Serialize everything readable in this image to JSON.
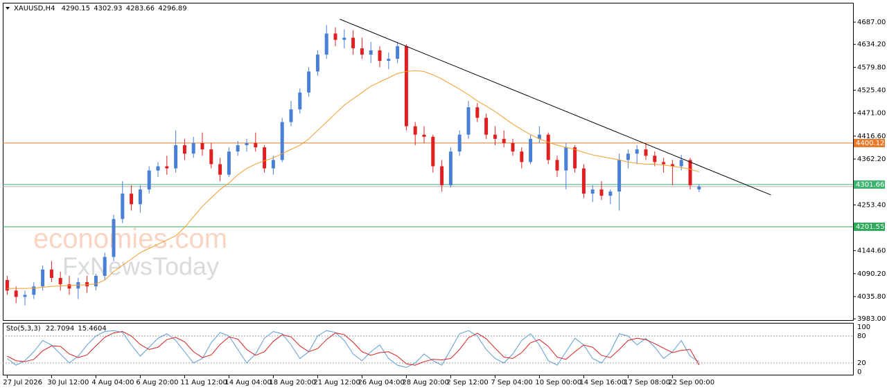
{
  "chart_data": [
    {
      "type": "candlestick",
      "symbol": "XAUUSD,H4",
      "watermark": [
        "economies.com",
        "FxNewsToday"
      ],
      "bull_color": "#4a7fd4",
      "bear_color": "#e02020",
      "categories": [
        "27 Jul 2026",
        null,
        null,
        null,
        null,
        "30 Jul 12:00",
        null,
        null,
        null,
        null,
        "4 Aug 04:00",
        null,
        null,
        null,
        null,
        "6 Aug 20:00",
        null,
        null,
        null,
        null,
        "11 Aug 12:00",
        null,
        null,
        null,
        null,
        "14 Aug 04:00",
        null,
        null,
        null,
        null,
        "18 Aug 20:00",
        null,
        null,
        null,
        null,
        "21 Aug 12:00",
        null,
        null,
        null,
        null,
        "26 Aug 04:00",
        null,
        null,
        null,
        null,
        "28 Aug 20:00",
        null,
        null,
        null,
        null,
        "2 Sep 12:00",
        null,
        null,
        null,
        null,
        "7 Sep 04:00",
        null,
        null,
        null,
        null,
        "10 Sep 00:00",
        null,
        null,
        null,
        null,
        "14 Sep 16:00",
        null,
        null,
        null,
        null,
        "17 Sep 08:00",
        null,
        null,
        null,
        null,
        "22 Sep 00:00",
        null,
        null,
        null
      ],
      "ohlc": [
        [
          4075,
          4085,
          4040,
          4050
        ],
        [
          4050,
          4060,
          4020,
          4035
        ],
        [
          4035,
          4050,
          4015,
          4040
        ],
        [
          4040,
          4070,
          4030,
          4060
        ],
        [
          4060,
          4110,
          4050,
          4100
        ],
        [
          4100,
          4120,
          4070,
          4080
        ],
        [
          4080,
          4095,
          4050,
          4065
        ],
        [
          4065,
          4085,
          4040,
          4055
        ],
        [
          4055,
          4080,
          4030,
          4070
        ],
        [
          4070,
          4085,
          4045,
          4060
        ],
        [
          4060,
          4090,
          4050,
          4085
        ],
        [
          4085,
          4140,
          4075,
          4130
        ],
        [
          4130,
          4230,
          4120,
          4220
        ],
        [
          4220,
          4310,
          4210,
          4280
        ],
        [
          4280,
          4300,
          4240,
          4255
        ],
        [
          4255,
          4300,
          4235,
          4290
        ],
        [
          4290,
          4345,
          4280,
          4335
        ],
        [
          4335,
          4355,
          4320,
          4345
        ],
        [
          4345,
          4370,
          4325,
          4340
        ],
        [
          4340,
          4430,
          4330,
          4395
        ],
        [
          4395,
          4410,
          4360,
          4375
        ],
        [
          4375,
          4415,
          4365,
          4400
        ],
        [
          4400,
          4425,
          4370,
          4385
        ],
        [
          4385,
          4400,
          4340,
          4350
        ],
        [
          4350,
          4365,
          4310,
          4325
        ],
        [
          4325,
          4390,
          4320,
          4380
        ],
        [
          4380,
          4405,
          4370,
          4395
        ],
        [
          4395,
          4410,
          4380,
          4400
        ],
        [
          4400,
          4425,
          4380,
          4390
        ],
        [
          4390,
          4395,
          4330,
          4340
        ],
        [
          4340,
          4370,
          4325,
          4360
        ],
        [
          4360,
          4460,
          4355,
          4450
        ],
        [
          4450,
          4500,
          4440,
          4480
        ],
        [
          4480,
          4530,
          4470,
          4520
        ],
        [
          4520,
          4580,
          4510,
          4570
        ],
        [
          4570,
          4620,
          4560,
          4610
        ],
        [
          4610,
          4680,
          4600,
          4660
        ],
        [
          4660,
          4675,
          4630,
          4645
        ],
        [
          4645,
          4670,
          4625,
          4650
        ],
        [
          4650,
          4668,
          4610,
          4625
        ],
        [
          4625,
          4650,
          4600,
          4610
        ],
        [
          4610,
          4640,
          4590,
          4620
        ],
        [
          4620,
          4630,
          4580,
          4595
        ],
        [
          4595,
          4615,
          4575,
          4600
        ],
        [
          4600,
          4640,
          4590,
          4630
        ],
        [
          4630,
          4635,
          4430,
          4440
        ],
        [
          4440,
          4450,
          4395,
          4420
        ],
        [
          4420,
          4440,
          4400,
          4415
        ],
        [
          4415,
          4420,
          4330,
          4345
        ],
        [
          4345,
          4360,
          4285,
          4300
        ],
        [
          4300,
          4390,
          4295,
          4380
        ],
        [
          4380,
          4430,
          4370,
          4420
        ],
        [
          4420,
          4500,
          4410,
          4485
        ],
        [
          4485,
          4495,
          4450,
          4460
        ],
        [
          4460,
          4470,
          4410,
          4420
        ],
        [
          4420,
          4440,
          4395,
          4410
        ],
        [
          4410,
          4430,
          4390,
          4400
        ],
        [
          4400,
          4410,
          4370,
          4380
        ],
        [
          4380,
          4390,
          4340,
          4355
        ],
        [
          4355,
          4420,
          4350,
          4410
        ],
        [
          4410,
          4440,
          4400,
          4420
        ],
        [
          4420,
          4425,
          4350,
          4360
        ],
        [
          4360,
          4370,
          4320,
          4335
        ],
        [
          4335,
          4400,
          4290,
          4390
        ],
        [
          4390,
          4395,
          4330,
          4340
        ],
        [
          4340,
          4350,
          4270,
          4280
        ],
        [
          4280,
          4300,
          4260,
          4290
        ],
        [
          4290,
          4310,
          4265,
          4275
        ],
        [
          4275,
          4290,
          4255,
          4285
        ],
        [
          4285,
          4375,
          4240,
          4360
        ],
        [
          4360,
          4385,
          4340,
          4375
        ],
        [
          4375,
          4395,
          4350,
          4385
        ],
        [
          4385,
          4400,
          4360,
          4370
        ],
        [
          4370,
          4380,
          4345,
          4355
        ],
        [
          4355,
          4365,
          4330,
          4350
        ],
        [
          4350,
          4360,
          4300,
          4345
        ],
        [
          4345,
          4372,
          4335,
          4360
        ],
        [
          4360,
          4365,
          4290,
          4300
        ],
        [
          4290.15,
          4302.93,
          4283.66,
          4296.89
        ]
      ],
      "ma": {
        "color": "#f39c2b",
        "values": [
          4055,
          4055,
          4055,
          4056,
          4058,
          4060,
          4061,
          4062,
          4063,
          4064,
          4066,
          4075,
          4095,
          4110,
          4125,
          4140,
          4150,
          4160,
          4170,
          4180,
          4200,
          4225,
          4250,
          4270,
          4290,
          4305,
          4325,
          4340,
          4350,
          4358,
          4365,
          4375,
          4385,
          4395,
          4410,
          4430,
          4450,
          4470,
          4490,
          4505,
          4520,
          4535,
          4545,
          4555,
          4565,
          4570,
          4572,
          4570,
          4562,
          4552,
          4540,
          4528,
          4515,
          4500,
          4488,
          4475,
          4460,
          4445,
          4432,
          4420,
          4410,
          4402,
          4395,
          4390,
          4385,
          4378,
          4372,
          4368,
          4364,
          4360,
          4355,
          4352,
          4350,
          4350,
          4348,
          4345,
          4342,
          4338,
          4332
        ]
      },
      "trendline": {
        "color": "#000000",
        "x": [
          37.5,
          86.1
        ],
        "y": [
          4694,
          4277
        ]
      },
      "levels": [
        {
          "value": 4400.12,
          "color": "#e8782a"
        },
        {
          "value": 4301.66,
          "color": "#3cb371"
        },
        {
          "value": 4201.55,
          "color": "#2eaa5a"
        }
      ],
      "ylim": [
        3980,
        4733
      ],
      "yticks": [
        {
          "value": 4687,
          "label": "4687.00"
        },
        {
          "value": 4634.2,
          "label": "4634.20"
        },
        {
          "value": 4579.8,
          "label": "4579.80"
        },
        {
          "value": 4525.4,
          "label": "4525.40"
        },
        {
          "value": 4471,
          "label": "4471.00"
        },
        {
          "value": 4416.6,
          "label": "4416.60"
        },
        {
          "value": 4362.2,
          "label": "4362.20"
        },
        {
          "value": 4253.4,
          "label": "4253.40"
        },
        {
          "value": 4144.6,
          "label": "4144.60"
        },
        {
          "value": 4090.2,
          "label": "4090.20"
        },
        {
          "value": 4035.8,
          "label": "4035.80"
        },
        {
          "value": 3983,
          "label": "3983.00"
        }
      ]
    },
    {
      "type": "line",
      "title": "Sto(5,3,3)",
      "series": [
        {
          "color": "#5b9bd5",
          "values": [
            30,
            15,
            25,
            45,
            70,
            60,
            40,
            20,
            35,
            60,
            80,
            90,
            92,
            88,
            60,
            35,
            55,
            75,
            85,
            70,
            45,
            20,
            30,
            65,
            88,
            80,
            50,
            20,
            40,
            75,
            90,
            85,
            60,
            30,
            45,
            80,
            92,
            88,
            70,
            40,
            25,
            45,
            60,
            30,
            15,
            10,
            20,
            40,
            25,
            15,
            50,
            85,
            92,
            80,
            50,
            30,
            20,
            40,
            70,
            85,
            60,
            25,
            15,
            45,
            75,
            60,
            30,
            20,
            45,
            85,
            80,
            60,
            75,
            55,
            30,
            45,
            70,
            35,
            22.7094
          ]
        },
        {
          "color": "#d42020",
          "values": [
            35,
            25,
            23,
            28,
            47,
            58,
            57,
            40,
            32,
            38,
            58,
            77,
            87,
            90,
            80,
            61,
            50,
            55,
            72,
            77,
            67,
            45,
            32,
            38,
            61,
            78,
            73,
            50,
            37,
            45,
            68,
            83,
            78,
            58,
            45,
            52,
            72,
            87,
            83,
            66,
            45,
            37,
            43,
            45,
            35,
            18,
            15,
            23,
            28,
            27,
            30,
            50,
            76,
            86,
            74,
            53,
            33,
            30,
            43,
            65,
            72,
            57,
            33,
            28,
            45,
            60,
            55,
            37,
            32,
            50,
            70,
            75,
            72,
            63,
            53,
            43,
            48,
            50,
            15.4604
          ]
        }
      ],
      "ylim": [
        0,
        100
      ],
      "yticks": [
        0,
        20,
        80,
        100
      ]
    }
  ]
}
